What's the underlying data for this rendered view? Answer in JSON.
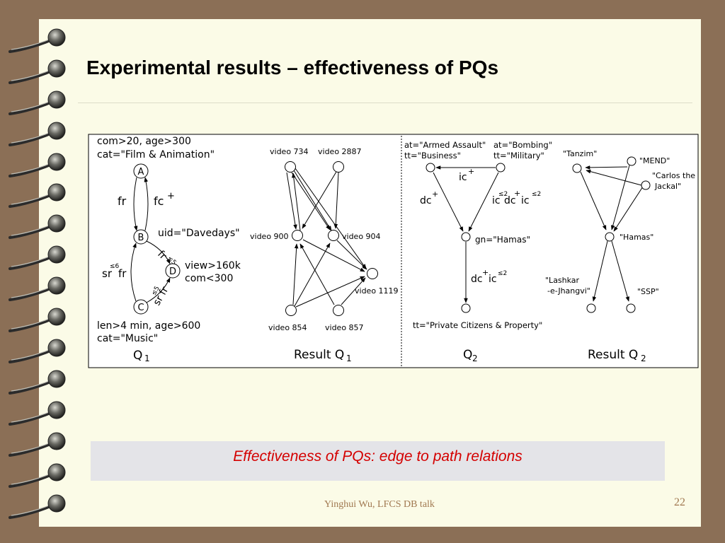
{
  "slide": {
    "title": "Experimental results – effectiveness of PQs",
    "caption": "Effectiveness of PQs: edge to path relations",
    "footer": "Yinghui Wu, LFCS DB talk",
    "page_number": "22"
  },
  "q1": {
    "cond_a_line1": "com>20, age>300",
    "cond_a_line2": "cat=\"Film & Animation\"",
    "node_a": "A",
    "node_b": "B",
    "node_c": "C",
    "node_d": "D",
    "edge_fr": "fr",
    "edge_fc": "fc",
    "plus": "+",
    "cond_b": "uid=\"Davedays\"",
    "edge_bd_fr": "fr",
    "edge_bd_bound": "≤5",
    "cond_d_line1": "view>160k",
    "cond_d_line2": "com<300",
    "edge_cb_bound": "≤6",
    "edge_cb_sr": "sr",
    "edge_cb_fr": "fr",
    "edge_cd_bound": "≤5",
    "edge_cd_sr": "sr",
    "edge_cd_fr": "fr",
    "cond_c_line1": "len>4 min, age>600",
    "cond_c_line2": "cat=\"Music\"",
    "label_q": "Q",
    "label_sub": "1"
  },
  "result_q1": {
    "video_734": "video 734",
    "video_2887": "video 2887",
    "video_900": "video 900",
    "video_904": "video 904",
    "video_1119": "video 1119",
    "video_854": "video 854",
    "video_857": "video 857",
    "label_main": "Result Q",
    "label_sub": "1"
  },
  "q2": {
    "cond_l_line1": "at=\"Armed Assault\"",
    "cond_l_line2": "tt=\"Business\"",
    "cond_r_line1": "at=\"Bombing\"",
    "cond_r_line2": "tt=\"Military\"",
    "edge_top": "ic",
    "plus": "+",
    "edge_left": "dc",
    "edge_right_ic1": "ic",
    "edge_right_dc": "dc",
    "edge_right_ic2": "ic",
    "bound_2": "≤2",
    "cond_mid": "gn=\"Hamas\"",
    "edge_down_dc": "dc",
    "edge_down_ic": "ic",
    "cond_bottom": "tt=\"Private Citizens & Property\"",
    "label_q": "Q",
    "label_sub": "2"
  },
  "result_q2": {
    "tanzim": "\"Tanzim\"",
    "mend": "\"MEND\"",
    "carlos_line1": "\"Carlos the",
    "carlos_line2": "Jackal\"",
    "hamas": "\"Hamas\"",
    "lashkar_line1": "\"Lashkar",
    "lashkar_line2": "-e-Jhangvi\"",
    "ssp": "\"SSP\"",
    "label_main": "Result Q",
    "label_sub": "2"
  },
  "colors": {
    "background": "#8b6f56",
    "slide": "#fbfbe7",
    "caption_text": "#d40000",
    "caption_box": "#e4e4e8",
    "footer_text": "#a07850"
  },
  "icons": [
    "spiral-binding-icon"
  ]
}
